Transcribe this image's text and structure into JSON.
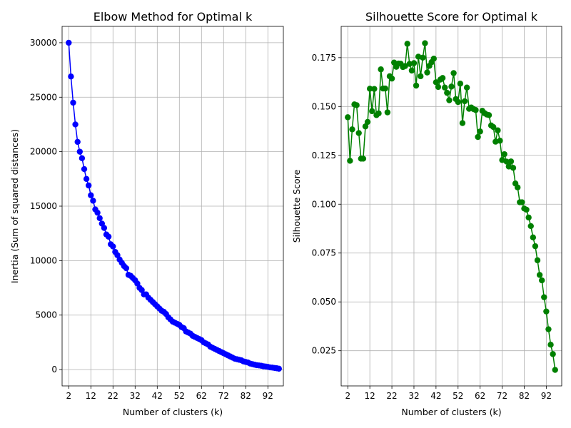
{
  "chart_data": [
    {
      "type": "line",
      "title": "Elbow Method for Optimal k",
      "xlabel": "Number of clusters (k)",
      "ylabel": "Inertia (Sum of squared distances)",
      "xlim": [
        -1,
        99
      ],
      "ylim": [
        -1500,
        31500
      ],
      "xticks": [
        2,
        12,
        22,
        32,
        42,
        52,
        62,
        72,
        82,
        92
      ],
      "yticks": [
        0,
        5000,
        10000,
        15000,
        20000,
        25000,
        30000
      ],
      "grid": true,
      "series": [
        {
          "color": "#0000ff",
          "marker": "circle",
          "points": [
            [
              2,
              30000
            ],
            [
              3,
              26900
            ],
            [
              4,
              24500
            ],
            [
              5,
              22500
            ],
            [
              6,
              20900
            ],
            [
              7,
              20000
            ],
            [
              8,
              19400
            ],
            [
              9,
              18400
            ],
            [
              10,
              17500
            ],
            [
              11,
              16900
            ],
            [
              12,
              16000
            ],
            [
              13,
              15500
            ],
            [
              14,
              14700
            ],
            [
              15,
              14400
            ],
            [
              16,
              13900
            ],
            [
              17,
              13400
            ],
            [
              18,
              13000
            ],
            [
              19,
              12400
            ],
            [
              20,
              12200
            ],
            [
              21,
              11500
            ],
            [
              22,
              11300
            ],
            [
              23,
              10800
            ],
            [
              24,
              10500
            ],
            [
              25,
              10100
            ],
            [
              26,
              9800
            ],
            [
              27,
              9500
            ],
            [
              28,
              9300
            ],
            [
              29,
              8700
            ],
            [
              30,
              8600
            ],
            [
              31,
              8400
            ],
            [
              32,
              8200
            ],
            [
              33,
              7900
            ],
            [
              34,
              7500
            ],
            [
              35,
              7300
            ],
            [
              36,
              6900
            ],
            [
              37,
              6900
            ],
            [
              38,
              6600
            ],
            [
              39,
              6400
            ],
            [
              40,
              6200
            ],
            [
              41,
              6000
            ],
            [
              42,
              5800
            ],
            [
              43,
              5600
            ],
            [
              44,
              5400
            ],
            [
              45,
              5300
            ],
            [
              46,
              5100
            ],
            [
              47,
              4800
            ],
            [
              48,
              4600
            ],
            [
              49,
              4400
            ],
            [
              50,
              4300
            ],
            [
              51,
              4200
            ],
            [
              52,
              4100
            ],
            [
              53,
              3900
            ],
            [
              54,
              3800
            ],
            [
              55,
              3500
            ],
            [
              56,
              3400
            ],
            [
              57,
              3300
            ],
            [
              58,
              3100
            ],
            [
              59,
              3000
            ],
            [
              60,
              2900
            ],
            [
              61,
              2800
            ],
            [
              62,
              2700
            ],
            [
              63,
              2500
            ],
            [
              64,
              2400
            ],
            [
              65,
              2300
            ],
            [
              66,
              2100
            ],
            [
              67,
              2000
            ],
            [
              68,
              1900
            ],
            [
              69,
              1800
            ],
            [
              70,
              1700
            ],
            [
              71,
              1600
            ],
            [
              72,
              1500
            ],
            [
              73,
              1400
            ],
            [
              74,
              1300
            ],
            [
              75,
              1200
            ],
            [
              76,
              1100
            ],
            [
              77,
              1000
            ],
            [
              78,
              950
            ],
            [
              79,
              900
            ],
            [
              80,
              850
            ],
            [
              81,
              750
            ],
            [
              82,
              700
            ],
            [
              83,
              650
            ],
            [
              84,
              550
            ],
            [
              85,
              500
            ],
            [
              86,
              450
            ],
            [
              87,
              400
            ],
            [
              88,
              380
            ],
            [
              89,
              350
            ],
            [
              90,
              300
            ],
            [
              91,
              280
            ],
            [
              92,
              250
            ],
            [
              93,
              200
            ],
            [
              94,
              180
            ],
            [
              95,
              150
            ],
            [
              96,
              120
            ],
            [
              97,
              80
            ]
          ]
        }
      ]
    },
    {
      "type": "line",
      "title": "Silhouette Score for Optimal k",
      "xlabel": "Number of clusters (k)",
      "ylabel": "Silhouette Score",
      "xlim": [
        -1,
        99
      ],
      "ylim": [
        0.007,
        0.191
      ],
      "xticks": [
        2,
        12,
        22,
        32,
        42,
        52,
        62,
        72,
        82,
        92
      ],
      "yticks": [
        0.025,
        0.05,
        0.075,
        0.1,
        0.125,
        0.15,
        0.175
      ],
      "ytick_labels": [
        "0.025",
        "0.050",
        "0.075",
        "0.100",
        "0.125",
        "0.150",
        "0.175"
      ],
      "grid": true,
      "series": [
        {
          "color": "#008000",
          "marker": "circle",
          "points": [
            [
              2,
              0.1445
            ],
            [
              3,
              0.1222
            ],
            [
              4,
              0.1383
            ],
            [
              5,
              0.1511
            ],
            [
              6,
              0.1507
            ],
            [
              7,
              0.1364
            ],
            [
              8,
              0.1233
            ],
            [
              9,
              0.1233
            ],
            [
              10,
              0.1398
            ],
            [
              11,
              0.1421
            ],
            [
              12,
              0.1591
            ],
            [
              13,
              0.1476
            ],
            [
              14,
              0.159
            ],
            [
              15,
              0.1456
            ],
            [
              16,
              0.1465
            ],
            [
              17,
              0.169
            ],
            [
              18,
              0.1592
            ],
            [
              19,
              0.1592
            ],
            [
              20,
              0.147
            ],
            [
              21,
              0.1655
            ],
            [
              22,
              0.1643
            ],
            [
              23,
              0.1725
            ],
            [
              24,
              0.1703
            ],
            [
              25,
              0.172
            ],
            [
              26,
              0.1719
            ],
            [
              27,
              0.1702
            ],
            [
              28,
              0.1707
            ],
            [
              29,
              0.1821
            ],
            [
              30,
              0.1718
            ],
            [
              31,
              0.1684
            ],
            [
              32,
              0.1722
            ],
            [
              33,
              0.1607
            ],
            [
              34,
              0.1755
            ],
            [
              35,
              0.1655
            ],
            [
              36,
              0.175
            ],
            [
              37,
              0.1824
            ],
            [
              38,
              0.1674
            ],
            [
              39,
              0.1708
            ],
            [
              40,
              0.1727
            ],
            [
              41,
              0.1745
            ],
            [
              42,
              0.1624
            ],
            [
              43,
              0.16
            ],
            [
              44,
              0.1638
            ],
            [
              45,
              0.1646
            ],
            [
              46,
              0.1597
            ],
            [
              47,
              0.157
            ],
            [
              48,
              0.1532
            ],
            [
              49,
              0.1602
            ],
            [
              50,
              0.1671
            ],
            [
              51,
              0.1538
            ],
            [
              52,
              0.1523
            ],
            [
              53,
              0.1617
            ],
            [
              54,
              0.1415
            ],
            [
              55,
              0.1527
            ],
            [
              56,
              0.1597
            ],
            [
              57,
              0.1488
            ],
            [
              58,
              0.1495
            ],
            [
              59,
              0.1487
            ],
            [
              60,
              0.1482
            ],
            [
              61,
              0.1344
            ],
            [
              62,
              0.1372
            ],
            [
              63,
              0.1478
            ],
            [
              64,
              0.1466
            ],
            [
              65,
              0.1459
            ],
            [
              66,
              0.1456
            ],
            [
              67,
              0.1403
            ],
            [
              68,
              0.1395
            ],
            [
              69,
              0.132
            ],
            [
              70,
              0.1378
            ],
            [
              71,
              0.1325
            ],
            [
              72,
              0.1226
            ],
            [
              73,
              0.1256
            ],
            [
              74,
              0.1218
            ],
            [
              75,
              0.1193
            ],
            [
              76,
              0.1219
            ],
            [
              77,
              0.1186
            ],
            [
              78,
              0.1106
            ],
            [
              79,
              0.1086
            ],
            [
              80,
              0.101
            ],
            [
              81,
              0.101
            ],
            [
              82,
              0.0978
            ],
            [
              83,
              0.0972
            ],
            [
              84,
              0.0932
            ],
            [
              85,
              0.0888
            ],
            [
              86,
              0.083
            ],
            [
              87,
              0.0785
            ],
            [
              88,
              0.0713
            ],
            [
              89,
              0.0638
            ],
            [
              90,
              0.061
            ],
            [
              91,
              0.0524
            ],
            [
              92,
              0.0451
            ],
            [
              93,
              0.036
            ],
            [
              94,
              0.0281
            ],
            [
              95,
              0.0233
            ],
            [
              96,
              0.0152
            ]
          ]
        }
      ]
    }
  ]
}
